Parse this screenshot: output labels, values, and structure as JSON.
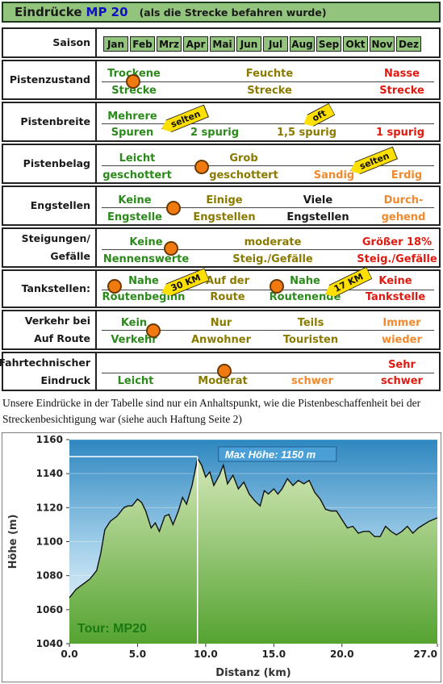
{
  "header": {
    "title": "Eindrücke",
    "route": "MP 20",
    "subtitle": "(als die Strecke befahren wurde)"
  },
  "table": {
    "saison": {
      "label": "Saison",
      "months": [
        "Jan",
        "Feb",
        "Mrz",
        "Apr",
        "Mai",
        "Jun",
        "Jul",
        "Aug",
        "Sep",
        "Okt",
        "Nov",
        "Dez"
      ]
    },
    "pistenzustand": {
      "label": "Pistenzustand",
      "c1a": "Trockene",
      "c1b": "Strecke",
      "c2a": "Feuchte",
      "c2b": "Strecke",
      "c3a": "Nasse",
      "c3b": "Strecke"
    },
    "pistenbreite": {
      "label": "Pistenbreite",
      "c1a": "Mehrere",
      "c1b": "Spuren",
      "c2": "2 spurig",
      "c3": "1,5 spurig",
      "c4": "1 spurig",
      "tag1": "selten",
      "tag2": "oft"
    },
    "pistenbelag": {
      "label": "Pistenbelag",
      "c1a": "Leicht",
      "c1b": "geschottert",
      "c2a": "Grob",
      "c2b": "geschottert",
      "c3": "Sandig",
      "c4": "Erdig",
      "tag1": "selten"
    },
    "engstellen": {
      "label": "Engstellen",
      "c1a": "Keine",
      "c1b": "Engstelle",
      "c2a": "Einige",
      "c2b": "Engstellen",
      "c3a": "Viele",
      "c3b": "Engstellen",
      "c4a": "Durch-",
      "c4b": "gehend"
    },
    "steigungen": {
      "label1": "Steigungen/",
      "label2": "Gefälle",
      "c1a": "Keine",
      "c1b": "Nennenswerte",
      "c2a": "moderate",
      "c2b": "Steig./Gefälle",
      "c3a": "Größer 18%",
      "c3b": "Steig./Gefälle"
    },
    "tankstellen": {
      "label": "Tankstellen:",
      "c1a": "Nahe",
      "c1b": "Routenbeginn",
      "c2a": "Auf der",
      "c2b": "Route",
      "c3a": "Nahe",
      "c3b": "Routenende",
      "c4a": "Keine",
      "c4b": "Tankstelle",
      "tag1": "30 KM",
      "tag2": "17 KM"
    },
    "verkehr": {
      "label1": "Verkehr bei",
      "label2": "Auf Route",
      "c1a": "Kein",
      "c1b": "Verkehr",
      "c2a": "Nur",
      "c2b": "Anwohner",
      "c3a": "Teils",
      "c3b": "Touristen",
      "c4a": "Immer",
      "c4b": "wieder"
    },
    "fahrtechnik": {
      "label1": "Fahrtechnischer",
      "label2": "Eindruck",
      "c1": "Leicht",
      "c2": "Moderat",
      "c3": "schwer",
      "c4a": "Sehr",
      "c4b": "schwer"
    }
  },
  "note": "Unsere Eindrücke in der Tabelle sind nur ein Anhaltspunkt, wie die Pistenbeschaffenheit bei der Streckenbesichtigung war (siehe auch Haftung Seite 2)",
  "chart_data": {
    "type": "area",
    "xlabel": "Distanz  (km)",
    "ylabel": "Höhe  (m)",
    "xlim": [
      0,
      27
    ],
    "ylim": [
      1040,
      1160
    ],
    "xticks": [
      "0.0",
      "5.0",
      "10.0",
      "15.0",
      "20.0",
      "27.0"
    ],
    "xtick_values": [
      0,
      5,
      10,
      15,
      20,
      27
    ],
    "yticks": [
      "1040",
      "1060",
      "1080",
      "1100",
      "1120",
      "1140",
      "1160"
    ],
    "annotation": "Max Höhe: 1150 m",
    "max_x": 9.4,
    "label": "Tour: MP20",
    "x": [
      0,
      0.5,
      1,
      1.5,
      2,
      2.3,
      2.6,
      3,
      3.5,
      3.8,
      4,
      4.3,
      4.6,
      5,
      5.3,
      5.6,
      6,
      6.3,
      6.6,
      7,
      7.3,
      7.6,
      8,
      8.3,
      8.6,
      9,
      9.4,
      9.7,
      10,
      10.3,
      10.6,
      11,
      11.3,
      11.6,
      12,
      12.4,
      12.8,
      13.2,
      13.6,
      14,
      14.3,
      14.6,
      15,
      15.3,
      15.6,
      16,
      16.4,
      16.8,
      17.2,
      17.6,
      18,
      18.4,
      18.8,
      19.2,
      19.6,
      20,
      20.4,
      20.8,
      21.2,
      21.6,
      22,
      22.4,
      22.8,
      23.2,
      23.6,
      24,
      24.4,
      24.8,
      25.2,
      25.6,
      26,
      26.4,
      27
    ],
    "y": [
      1067,
      1072,
      1075,
      1078,
      1083,
      1093,
      1107,
      1112,
      1115,
      1118,
      1120,
      1121,
      1121,
      1125,
      1123,
      1118,
      1108,
      1111,
      1106,
      1115,
      1116,
      1110,
      1118,
      1126,
      1122,
      1133,
      1149,
      1145,
      1138,
      1141,
      1133,
      1139,
      1145,
      1134,
      1139,
      1131,
      1135,
      1128,
      1124,
      1121,
      1130,
      1128,
      1131,
      1128,
      1131,
      1137,
      1133,
      1136,
      1134,
      1136,
      1129,
      1125,
      1119,
      1118,
      1118,
      1113,
      1108,
      1109,
      1105,
      1106,
      1106,
      1103,
      1103,
      1109,
      1106,
      1104,
      1106,
      1109,
      1105,
      1108,
      1110,
      1112,
      1114
    ]
  },
  "colors": {
    "header_bg": "#93c47d",
    "sky_top": "#2e87c0",
    "sky_bottom": "#ffffff",
    "terrain_top": "#d4e8b8",
    "terrain_bottom": "#55a331",
    "dot": "#f07a10",
    "tag": "#ffe000"
  }
}
